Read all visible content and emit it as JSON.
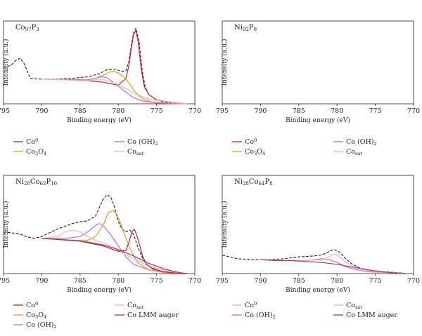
{
  "figure_title": "",
  "chart_data": [
    {
      "type": "line",
      "title": "Co₉₇P₃",
      "title_parts": [
        {
          "t": "Co"
        },
        {
          "t": "97",
          "sub": true
        },
        {
          "t": "P"
        },
        {
          "t": "3",
          "sub": true
        }
      ],
      "xlabel": "Binding energy (eV)",
      "ylabel": "Intensity (a.u.)",
      "xlim": [
        795,
        770
      ],
      "x_reversed": true,
      "xticks": [
        795,
        790,
        785,
        780,
        775,
        770
      ],
      "ylim": [
        0,
        1
      ],
      "yticks_shown": false,
      "grid": false,
      "legend_position": "below",
      "legend": [
        {
          "parts": [
            {
              "t": "Co"
            },
            {
              "t": "0",
              "sup": true
            }
          ],
          "color": "#d21f1f"
        },
        {
          "parts": [
            {
              "t": "Co (OH)"
            },
            {
              "t": "2",
              "sub": true
            }
          ],
          "color": "#e264b4"
        },
        {
          "parts": [
            {
              "t": "Co"
            },
            {
              "t": "3",
              "sub": true
            },
            {
              "t": "O"
            },
            {
              "t": "4",
              "sub": true
            }
          ],
          "color": "#f0951c"
        },
        {
          "parts": [
            {
              "t": "Co"
            },
            {
              "t": "sat",
              "sub": true
            }
          ],
          "color": "#f4b2b2"
        }
      ],
      "series": [
        {
          "color": "#222222",
          "dash": true,
          "x": [
            795,
            794,
            793.3,
            792.8,
            792.3,
            791.5,
            790,
            788,
            786,
            784,
            782.5,
            781.5,
            780.5,
            779.5,
            779,
            778.6,
            778.3,
            778,
            777.7,
            777.3,
            776.9,
            776.5,
            776,
            775,
            774,
            773,
            771
          ],
          "y": [
            0.47,
            0.5,
            0.57,
            0.59,
            0.52,
            0.33,
            0.32,
            0.32,
            0.33,
            0.35,
            0.39,
            0.44,
            0.45,
            0.42,
            0.43,
            0.55,
            0.76,
            0.92,
            0.98,
            0.82,
            0.45,
            0.22,
            0.12,
            0.05,
            0.02,
            0.01,
            0.0
          ]
        },
        {
          "color": "#d21f1f",
          "dash": false,
          "x": [
            790,
            785,
            782,
            780,
            779,
            778.6,
            778.3,
            778,
            777.7,
            777.4,
            777,
            776.6,
            776,
            775,
            773,
            771
          ],
          "y": [
            0.32,
            0.31,
            0.28,
            0.24,
            0.33,
            0.5,
            0.72,
            0.9,
            0.95,
            0.8,
            0.45,
            0.22,
            0.12,
            0.05,
            0.02,
            0.0
          ]
        },
        {
          "color": "#f0951c",
          "dash": false,
          "x": [
            790,
            786,
            784,
            783,
            782,
            781.2,
            780.6,
            780,
            779.3,
            778.6,
            778,
            777.3,
            776.5,
            775.5,
            774,
            772,
            771
          ],
          "y": [
            0.32,
            0.31,
            0.31,
            0.33,
            0.37,
            0.41,
            0.42,
            0.4,
            0.35,
            0.27,
            0.18,
            0.1,
            0.05,
            0.02,
            0.01,
            0.0,
            0.0
          ]
        },
        {
          "color": "#e264b4",
          "dash": false,
          "x": [
            790,
            786,
            784,
            783,
            782.3,
            781.5,
            780.8,
            780,
            779,
            778,
            777,
            775,
            771
          ],
          "y": [
            0.32,
            0.31,
            0.31,
            0.33,
            0.35,
            0.34,
            0.29,
            0.23,
            0.15,
            0.08,
            0.04,
            0.01,
            0.0
          ]
        },
        {
          "color": "#f4b2b2",
          "dash": false,
          "x": [
            790,
            787,
            785,
            784,
            783,
            782,
            781,
            780,
            779,
            778,
            776,
            773,
            771
          ],
          "y": [
            0.32,
            0.31,
            0.3,
            0.3,
            0.31,
            0.31,
            0.29,
            0.25,
            0.2,
            0.14,
            0.06,
            0.02,
            0.0
          ]
        }
      ]
    },
    {
      "type": "line",
      "title": "Ni₉₂P₈",
      "title_parts": [
        {
          "t": "Ni"
        },
        {
          "t": "92",
          "sub": true
        },
        {
          "t": "P"
        },
        {
          "t": "8",
          "sub": true
        }
      ],
      "xlabel": "Binding energy (eV)",
      "ylabel": "Intensity (a.u.)",
      "xlim": [
        795,
        770
      ],
      "x_reversed": true,
      "xticks": [
        795,
        790,
        785,
        780,
        775,
        770
      ],
      "ylim": [
        0,
        1
      ],
      "yticks_shown": false,
      "grid": false,
      "legend_position": "below",
      "legend": [
        {
          "parts": [
            {
              "t": "Co"
            },
            {
              "t": "0",
              "sup": true
            }
          ],
          "color": "#d21f1f"
        },
        {
          "parts": [
            {
              "t": "Co (OH)"
            },
            {
              "t": "2",
              "sub": true
            }
          ],
          "color": "#e264b4"
        },
        {
          "parts": [
            {
              "t": "Co"
            },
            {
              "t": "3",
              "sub": true
            },
            {
              "t": "O"
            },
            {
              "t": "4",
              "sub": true
            }
          ],
          "color": "#f0951c"
        },
        {
          "parts": [
            {
              "t": "Co"
            },
            {
              "t": "sat",
              "sub": true
            }
          ],
          "color": "#f4b2b2"
        }
      ],
      "series": []
    },
    {
      "type": "line",
      "title": "Ni₂₈Co₆₂P₁₀",
      "title_parts": [
        {
          "t": "Ni"
        },
        {
          "t": "28",
          "sub": true
        },
        {
          "t": "Co"
        },
        {
          "t": "62",
          "sub": true
        },
        {
          "t": "P"
        },
        {
          "t": "10",
          "sub": true
        }
      ],
      "xlabel": "Binding energy (eV)",
      "ylabel": "Intensity (a.u.)",
      "xlim": [
        795,
        770
      ],
      "x_reversed": true,
      "xticks": [
        795,
        790,
        785,
        780,
        775,
        770
      ],
      "ylim": [
        0,
        1
      ],
      "yticks_shown": false,
      "grid": false,
      "legend_position": "below",
      "legend": [
        {
          "parts": [
            {
              "t": "Co"
            },
            {
              "t": "0",
              "sup": true
            }
          ],
          "color": "#b5202c"
        },
        {
          "parts": [
            {
              "t": "Co"
            },
            {
              "t": "sat",
              "sub": true
            }
          ],
          "color": "#f4b2b2"
        },
        {
          "parts": [
            {
              "t": "Co"
            },
            {
              "t": "3",
              "sub": true
            },
            {
              "t": "O"
            },
            {
              "t": "4",
              "sub": true
            }
          ],
          "color": "#f0951c"
        },
        {
          "parts": [
            {
              "t": "Co LMM auger"
            }
          ],
          "color": "#a8326f"
        },
        {
          "parts": [
            {
              "t": "Co (OH)"
            },
            {
              "t": "2",
              "sub": true
            }
          ],
          "color": "#c56ad6"
        }
      ],
      "series": [
        {
          "color": "#222222",
          "dash": true,
          "x": [
            795,
            794,
            793,
            792,
            791,
            790,
            789,
            788,
            787,
            786,
            785,
            784,
            783,
            782,
            781.5,
            781,
            780.5,
            780,
            779.5,
            779,
            778.5,
            778,
            777.5,
            777,
            776.5,
            776,
            775,
            774,
            773,
            771
          ],
          "y": [
            0.45,
            0.44,
            0.43,
            0.4,
            0.38,
            0.4,
            0.44,
            0.48,
            0.51,
            0.54,
            0.56,
            0.57,
            0.62,
            0.8,
            0.85,
            0.83,
            0.72,
            0.56,
            0.48,
            0.45,
            0.47,
            0.42,
            0.3,
            0.2,
            0.12,
            0.08,
            0.04,
            0.02,
            0.01,
            0.0
          ]
        },
        {
          "color": "#c56ad6",
          "dash": false,
          "x": [
            790,
            787,
            785,
            784,
            783,
            782.5,
            782,
            781,
            780,
            779,
            778,
            776,
            773,
            771
          ],
          "y": [
            0.38,
            0.38,
            0.4,
            0.45,
            0.52,
            0.54,
            0.52,
            0.42,
            0.3,
            0.18,
            0.1,
            0.04,
            0.01,
            0.0
          ]
        },
        {
          "color": "#f0951c",
          "dash": false,
          "x": [
            790,
            786,
            784,
            783,
            782,
            781.3,
            780.7,
            780.2,
            779.6,
            779,
            778.3,
            777.5,
            776,
            774,
            771
          ],
          "y": [
            0.38,
            0.36,
            0.36,
            0.4,
            0.52,
            0.66,
            0.68,
            0.64,
            0.52,
            0.38,
            0.24,
            0.12,
            0.04,
            0.01,
            0.0
          ]
        },
        {
          "color": "#f4b2b2",
          "dash": false,
          "x": [
            790,
            788,
            787,
            786,
            785,
            784,
            783,
            781,
            779,
            776,
            773,
            771
          ],
          "y": [
            0.38,
            0.4,
            0.45,
            0.47,
            0.45,
            0.4,
            0.36,
            0.3,
            0.2,
            0.08,
            0.02,
            0.0
          ]
        },
        {
          "color": "#b5202c",
          "dash": false,
          "x": [
            790,
            785,
            782,
            780,
            779,
            778.6,
            778.2,
            777.9,
            777.6,
            777.2,
            776.8,
            776.3,
            775.5,
            774,
            772,
            771
          ],
          "y": [
            0.38,
            0.35,
            0.3,
            0.24,
            0.25,
            0.34,
            0.45,
            0.48,
            0.42,
            0.3,
            0.18,
            0.1,
            0.05,
            0.02,
            0.0,
            0.0
          ]
        },
        {
          "color": "#a8326f",
          "dash": false,
          "x": [
            790,
            788,
            786,
            784,
            782,
            780,
            778,
            776,
            774,
            772,
            771
          ],
          "y": [
            0.38,
            0.37,
            0.36,
            0.34,
            0.31,
            0.26,
            0.19,
            0.11,
            0.05,
            0.01,
            0.0
          ]
        }
      ]
    },
    {
      "type": "line",
      "title": "Ni₂₈Co₆₄P₈",
      "title_parts": [
        {
          "t": "Ni"
        },
        {
          "t": "28",
          "sub": true
        },
        {
          "t": "Co"
        },
        {
          "t": "64",
          "sub": true
        },
        {
          "t": "P"
        },
        {
          "t": "8",
          "sub": true
        }
      ],
      "xlabel": "Binding energy (eV)",
      "ylabel": "Intensity (a.u.)",
      "xlim": [
        795,
        770
      ],
      "x_reversed": true,
      "xticks": [
        795,
        790,
        785,
        780,
        775,
        770
      ],
      "ylim": [
        0,
        1
      ],
      "yticks_shown": false,
      "grid": false,
      "legend_position": "below",
      "legend": [
        {
          "parts": [
            {
              "t": "Co"
            },
            {
              "t": "0",
              "sup": true
            }
          ],
          "color": "#f4b2b2"
        },
        {
          "parts": [
            {
              "t": "Co"
            },
            {
              "t": "sat",
              "sub": true
            }
          ],
          "color": "#f4b2b2"
        },
        {
          "parts": [
            {
              "t": "Co (OH)"
            },
            {
              "t": "2",
              "sub": true
            }
          ],
          "color": "#e264b4"
        },
        {
          "parts": [
            {
              "t": "Co LMM auger"
            }
          ],
          "color": "#a8326f"
        }
      ],
      "series": [
        {
          "color": "#222222",
          "dash": true,
          "x": [
            795,
            793,
            791,
            789,
            787,
            785,
            783,
            782,
            781,
            780.5,
            780,
            779.5,
            779,
            778,
            777,
            776,
            774,
            772,
            771
          ],
          "y": [
            0.2,
            0.16,
            0.15,
            0.15,
            0.16,
            0.18,
            0.19,
            0.2,
            0.24,
            0.26,
            0.25,
            0.22,
            0.17,
            0.1,
            0.06,
            0.04,
            0.02,
            0.01,
            0.0
          ]
        },
        {
          "color": "#e264b4",
          "dash": false,
          "x": [
            790,
            786,
            784,
            783,
            782,
            781,
            780,
            779,
            778,
            776,
            773,
            771
          ],
          "y": [
            0.15,
            0.14,
            0.14,
            0.15,
            0.16,
            0.15,
            0.12,
            0.08,
            0.05,
            0.02,
            0.01,
            0.0
          ]
        },
        {
          "color": "#f4b2b2",
          "dash": false,
          "x": [
            790,
            785,
            782,
            781,
            780.5,
            780,
            779.5,
            779,
            778,
            776,
            773,
            771
          ],
          "y": [
            0.15,
            0.14,
            0.15,
            0.18,
            0.21,
            0.2,
            0.17,
            0.13,
            0.08,
            0.03,
            0.01,
            0.0
          ]
        },
        {
          "color": "#a8326f",
          "dash": false,
          "x": [
            790,
            788,
            786,
            784,
            782,
            780,
            778,
            776,
            774,
            772,
            771
          ],
          "y": [
            0.15,
            0.14,
            0.14,
            0.13,
            0.12,
            0.1,
            0.07,
            0.04,
            0.02,
            0.0,
            0.0
          ]
        }
      ]
    }
  ]
}
